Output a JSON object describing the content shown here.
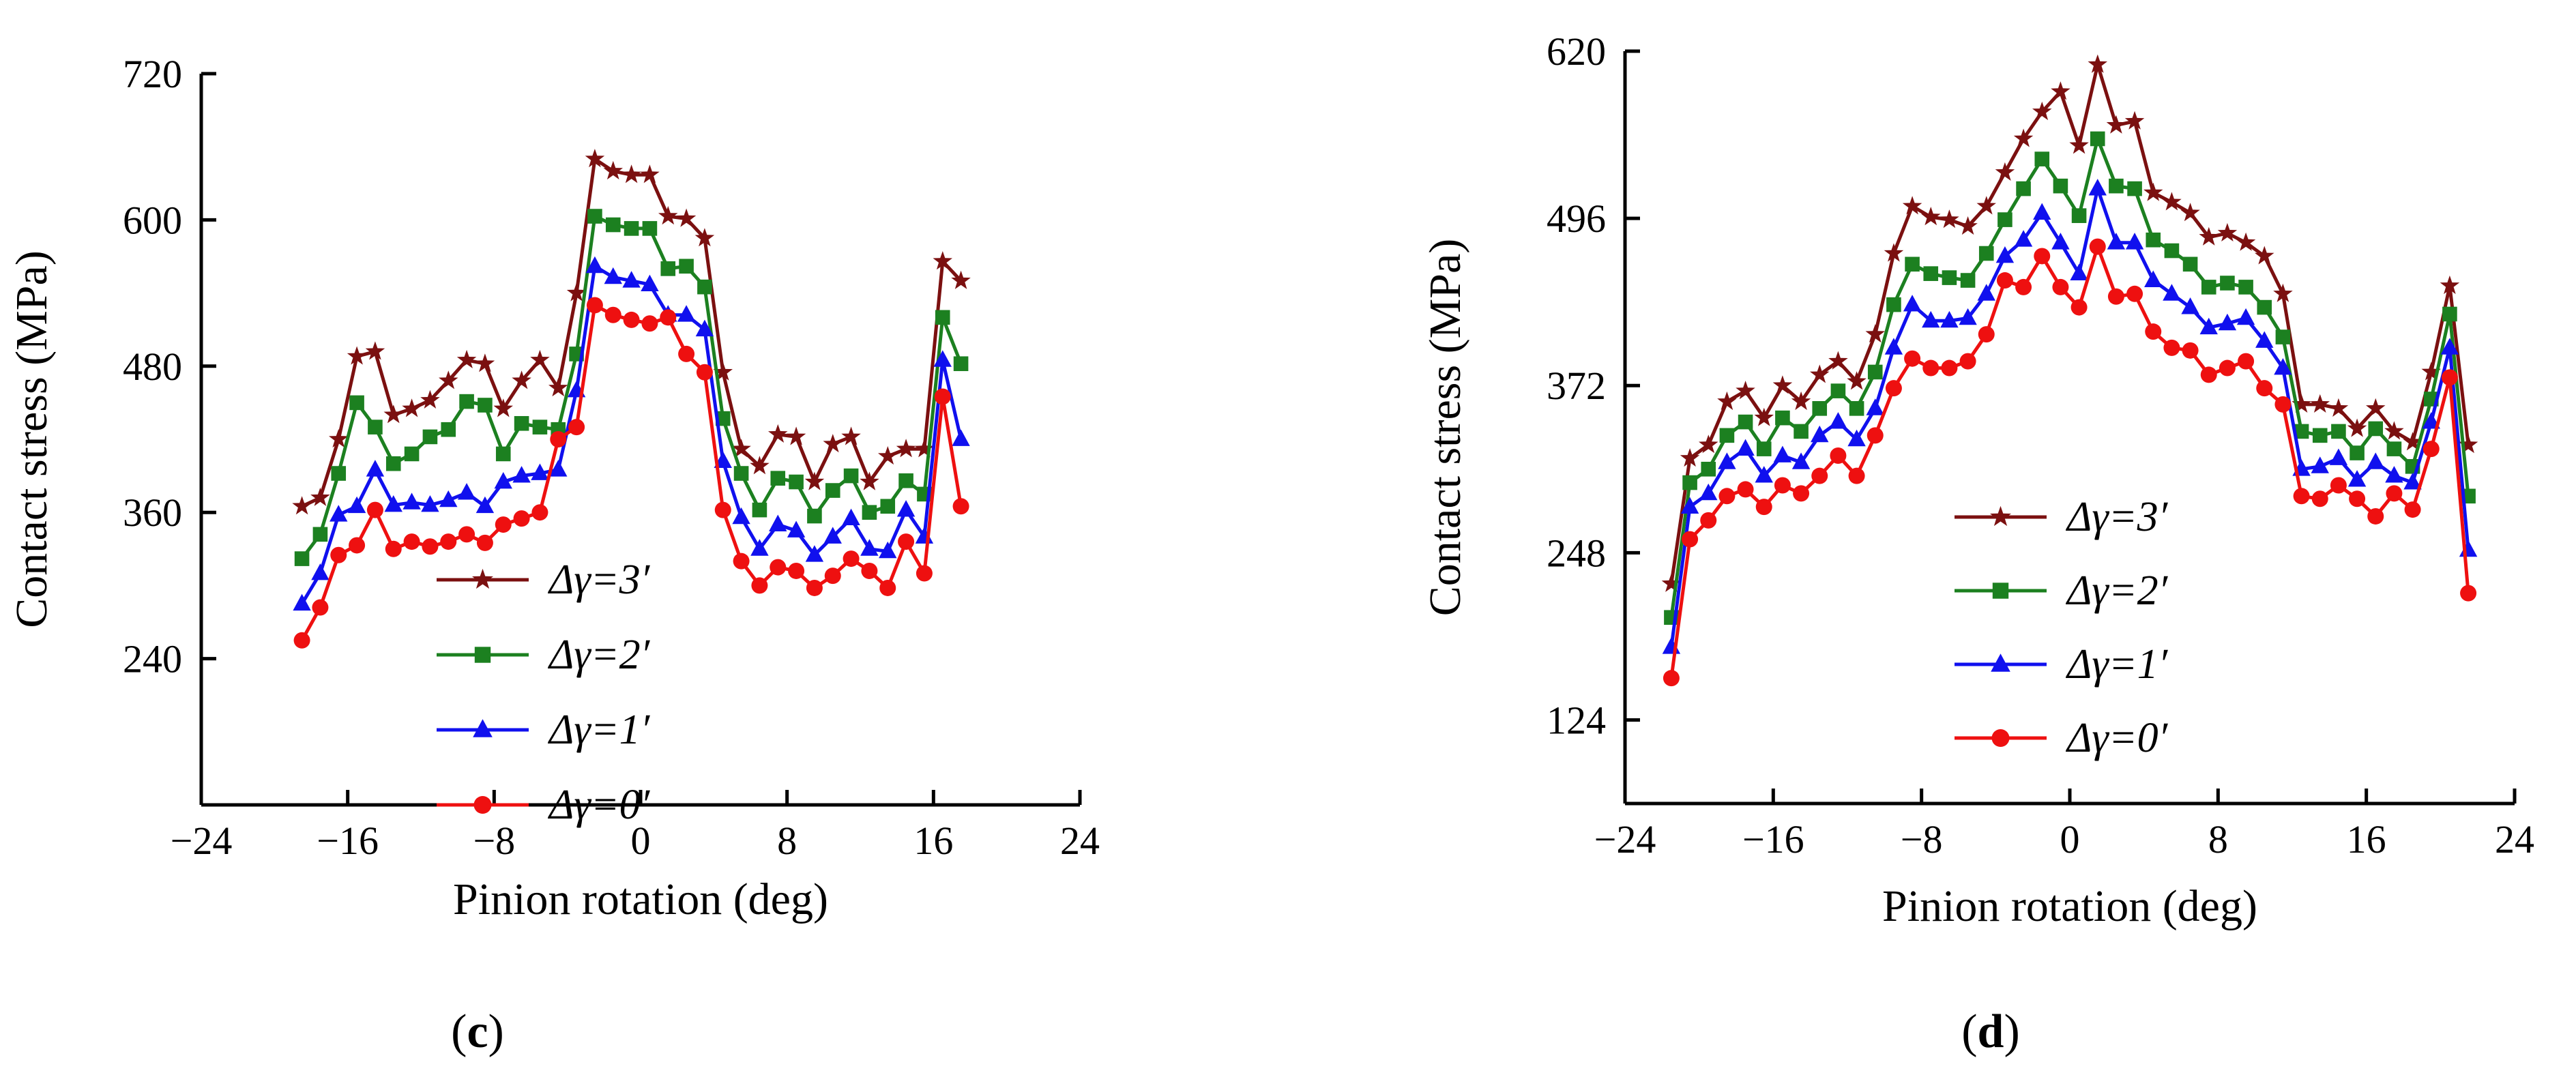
{
  "chart_data": [
    {
      "type": "line",
      "panel_label": "c",
      "xlabel": "Pinion rotation  (deg)",
      "ylabel": "Contact stress (MPa)",
      "xlim": [
        -24,
        24
      ],
      "ylim": [
        120,
        720
      ],
      "xticks": [
        -24,
        -16,
        -8,
        0,
        8,
        16,
        24
      ],
      "yticks": [
        240,
        360,
        480,
        600,
        720
      ],
      "x": [
        -18.5,
        -17.5,
        -16.5,
        -15.5,
        -14.5,
        -13.5,
        -12.5,
        -11.5,
        -10.5,
        -9.5,
        -8.5,
        -7.5,
        -6.5,
        -5.5,
        -4.5,
        -3.5,
        -2.5,
        -1.5,
        -0.5,
        0.5,
        1.5,
        2.5,
        3.5,
        4.5,
        5.5,
        6.5,
        7.5,
        8.5,
        9.5,
        10.5,
        11.5,
        12.5,
        13.5,
        14.5,
        15.5,
        16.5,
        17.5
      ],
      "series": [
        {
          "name": "Δγ=3′",
          "color": "#7b1010",
          "marker": "star",
          "values": [
            365,
            372,
            420,
            488,
            492,
            440,
            445,
            452,
            468,
            485,
            482,
            445,
            468,
            485,
            462,
            540,
            650,
            640,
            637,
            637,
            603,
            601,
            585,
            475,
            412,
            398,
            424,
            422,
            385,
            416,
            422,
            385,
            406,
            412,
            412,
            566,
            550
          ]
        },
        {
          "name": "Δγ=2′",
          "color": "#1c8020",
          "marker": "square",
          "values": [
            322,
            342,
            392,
            450,
            430,
            400,
            408,
            422,
            428,
            451,
            448,
            408,
            433,
            430,
            428,
            490,
            603,
            596,
            593,
            593,
            560,
            562,
            545,
            437,
            392,
            362,
            388,
            385,
            357,
            378,
            390,
            360,
            365,
            386,
            375,
            520,
            482
          ]
        },
        {
          "name": "Δγ=1′",
          "color": "#1010ee",
          "marker": "triangle",
          "values": [
            285,
            310,
            358,
            365,
            395,
            366,
            368,
            366,
            370,
            376,
            365,
            385,
            390,
            392,
            395,
            460,
            562,
            553,
            550,
            547,
            522,
            522,
            510,
            402,
            356,
            330,
            350,
            345,
            325,
            340,
            355,
            330,
            328,
            362,
            340,
            485,
            420
          ]
        },
        {
          "name": "Δγ=0′",
          "color": "#ee1010",
          "marker": "circle",
          "values": [
            255,
            282,
            325,
            333,
            362,
            330,
            336,
            332,
            336,
            342,
            335,
            350,
            355,
            360,
            420,
            430,
            530,
            522,
            518,
            515,
            520,
            490,
            475,
            362,
            320,
            300,
            315,
            312,
            298,
            308,
            322,
            312,
            298,
            336,
            310,
            455,
            365
          ]
        }
      ],
      "legend": [
        "Δγ=3′",
        "Δγ=2′",
        "Δγ=1′",
        "Δγ=0′"
      ]
    },
    {
      "type": "line",
      "panel_label": "d",
      "xlabel": "Pinion rotation  (deg)",
      "ylabel": "Contact stress (MPa)",
      "xlim": [
        -24,
        24
      ],
      "ylim": [
        62,
        620
      ],
      "xticks": [
        -24,
        -16,
        -8,
        0,
        8,
        16,
        24
      ],
      "yticks": [
        124,
        248,
        372,
        496,
        620
      ],
      "x": [
        -21.5,
        -20.5,
        -19.5,
        -18.5,
        -17.5,
        -16.5,
        -15.5,
        -14.5,
        -13.5,
        -12.5,
        -11.5,
        -10.5,
        -9.5,
        -8.5,
        -7.5,
        -6.5,
        -5.5,
        -4.5,
        -3.5,
        -2.5,
        -1.5,
        -0.5,
        0.5,
        1.5,
        2.5,
        3.5,
        4.5,
        5.5,
        6.5,
        7.5,
        8.5,
        9.5,
        10.5,
        11.5,
        12.5,
        13.5,
        14.5,
        15.5,
        16.5,
        17.5,
        18.5,
        19.5,
        20.5,
        21.5
      ],
      "series": [
        {
          "name": "Δγ=3′",
          "color": "#7b1010",
          "marker": "star",
          "values": [
            225,
            318,
            328,
            360,
            368,
            348,
            372,
            360,
            380,
            390,
            375,
            410,
            470,
            505,
            497,
            495,
            490,
            505,
            530,
            555,
            575,
            590,
            550,
            610,
            565,
            568,
            515,
            508,
            500,
            482,
            485,
            478,
            468,
            440,
            358,
            358,
            355,
            340,
            355,
            338,
            330,
            382,
            446,
            328
          ]
        },
        {
          "name": "Δγ=2′",
          "color": "#1c8020",
          "marker": "square",
          "values": [
            200,
            300,
            310,
            335,
            345,
            325,
            348,
            338,
            355,
            368,
            355,
            382,
            432,
            462,
            455,
            452,
            450,
            470,
            495,
            518,
            540,
            520,
            498,
            555,
            520,
            518,
            480,
            472,
            462,
            445,
            448,
            445,
            430,
            408,
            338,
            335,
            338,
            322,
            340,
            325,
            312,
            362,
            425,
            290
          ]
        },
        {
          "name": "Δγ=1′",
          "color": "#1010ee",
          "marker": "triangle",
          "values": [
            178,
            282,
            292,
            315,
            325,
            305,
            320,
            315,
            335,
            345,
            332,
            355,
            400,
            432,
            420,
            420,
            422,
            440,
            468,
            480,
            500,
            478,
            455,
            518,
            478,
            478,
            450,
            440,
            430,
            415,
            418,
            422,
            405,
            385,
            310,
            312,
            318,
            302,
            315,
            305,
            300,
            345,
            400,
            250
          ]
        },
        {
          "name": "Δγ=0′",
          "color": "#ee1010",
          "marker": "circle",
          "values": [
            155,
            258,
            272,
            290,
            295,
            282,
            298,
            292,
            305,
            320,
            305,
            335,
            370,
            392,
            385,
            385,
            390,
            410,
            450,
            445,
            468,
            445,
            430,
            475,
            438,
            440,
            412,
            400,
            398,
            380,
            385,
            390,
            370,
            358,
            290,
            288,
            298,
            288,
            275,
            292,
            280,
            325,
            378,
            218
          ]
        }
      ],
      "legend": [
        "Δγ=3′",
        "Δγ=2′",
        "Δγ=1′",
        "Δγ=0′"
      ]
    }
  ]
}
